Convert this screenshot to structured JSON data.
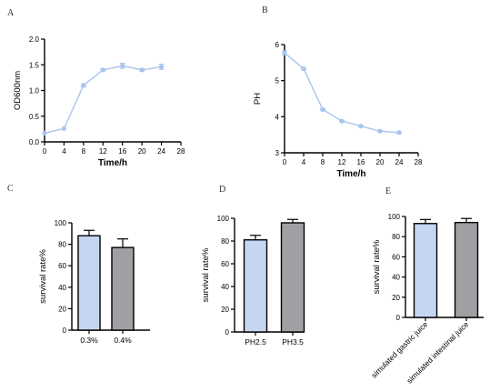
{
  "chart_data": [
    {
      "id": "A",
      "type": "line",
      "panel_label": "A",
      "xlabel": "Time/h",
      "ylabel": "OD600nm",
      "xlim": [
        0,
        28
      ],
      "ylim": [
        0.0,
        2.0
      ],
      "xticks": [
        0,
        4,
        8,
        12,
        16,
        20,
        24,
        28
      ],
      "yticks": [
        0.0,
        0.5,
        1.0,
        1.5,
        2.0
      ],
      "ytick_labels": [
        "0.0",
        "0.5",
        "1.0",
        "1.5",
        "2.0"
      ],
      "series": [
        {
          "x": [
            0,
            4,
            8,
            12,
            16,
            20,
            24
          ],
          "y": [
            0.17,
            0.26,
            1.1,
            1.4,
            1.48,
            1.4,
            1.46
          ],
          "err": [
            0,
            0,
            0.03,
            0.02,
            0.05,
            0.02,
            0.05
          ]
        }
      ],
      "color": "#a9c4ee"
    },
    {
      "id": "B",
      "type": "line",
      "panel_label": "B",
      "xlabel": "Time/h",
      "ylabel": "PH",
      "xlim": [
        0,
        28
      ],
      "ylim": [
        3,
        6
      ],
      "xticks": [
        0,
        4,
        8,
        12,
        16,
        20,
        24,
        28
      ],
      "yticks": [
        3,
        4,
        5,
        6
      ],
      "ytick_labels": [
        "3",
        "4",
        "5",
        "6"
      ],
      "series": [
        {
          "x": [
            0,
            4,
            8,
            12,
            16,
            20,
            24
          ],
          "y": [
            5.77,
            5.33,
            4.2,
            3.88,
            3.74,
            3.6,
            3.56
          ],
          "err": [
            0.05,
            0.03,
            0.02,
            0.02,
            0.02,
            0.02,
            0.02
          ]
        }
      ],
      "color": "#a9c4ee"
    },
    {
      "id": "C",
      "type": "bar",
      "panel_label": "C",
      "ylabel": "survival rate%",
      "ylim": [
        0,
        100
      ],
      "yticks": [
        0,
        20,
        40,
        60,
        80,
        100
      ],
      "categories": [
        "0.3%",
        "0.4%"
      ],
      "values": [
        88,
        77
      ],
      "errors": [
        5,
        8
      ],
      "colors": [
        "#c5d6f2",
        "#a0a0a4"
      ]
    },
    {
      "id": "D",
      "type": "bar",
      "panel_label": "D",
      "ylabel": "survival rate%",
      "ylim": [
        0,
        100
      ],
      "yticks": [
        0,
        20,
        40,
        60,
        80,
        100
      ],
      "categories": [
        "PH2.5",
        "PH3.5"
      ],
      "values": [
        81,
        96
      ],
      "errors": [
        4,
        3
      ],
      "colors": [
        "#c5d6f2",
        "#a0a0a4"
      ]
    },
    {
      "id": "E",
      "type": "bar",
      "panel_label": "E",
      "ylabel": "survival rate%",
      "ylim": [
        0,
        100
      ],
      "yticks": [
        0,
        20,
        40,
        60,
        80,
        100
      ],
      "categories": [
        "simulated gastric juice",
        "simulated intestinal juice"
      ],
      "values": [
        93,
        94
      ],
      "errors": [
        4,
        4
      ],
      "colors": [
        "#c5d6f2",
        "#a0a0a4"
      ]
    }
  ]
}
